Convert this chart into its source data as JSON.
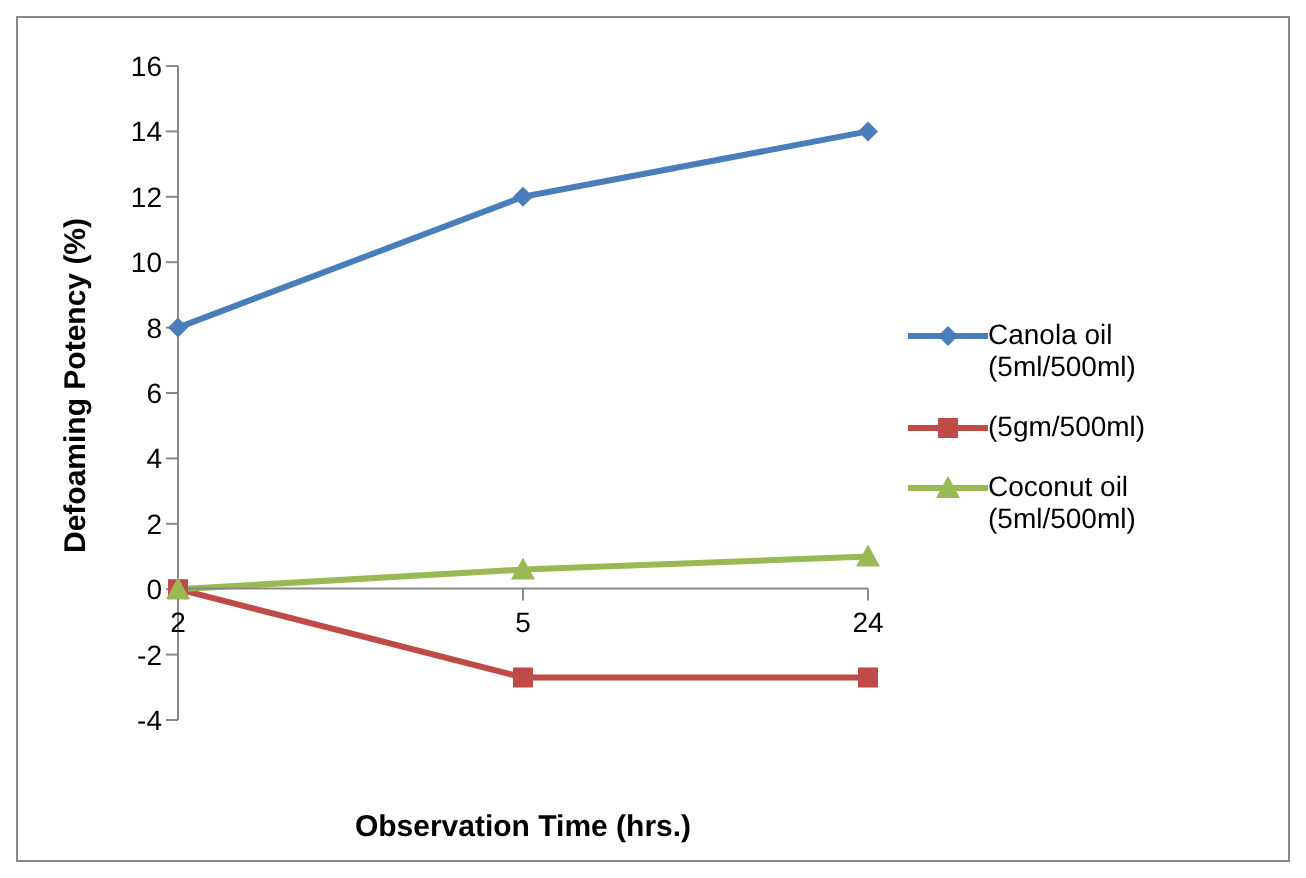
{
  "chart_data": {
    "type": "line",
    "xlabel": "Observation Time (hrs.)",
    "ylabel": "Defoaming Potency (%)",
    "categories": [
      "2",
      "5",
      "24"
    ],
    "series": [
      {
        "name": "Canola oil (5ml/500ml)",
        "color": "#4a7ebb",
        "values": [
          8,
          12,
          14
        ],
        "marker": "diamond"
      },
      {
        "name": "(5gm/500ml)",
        "color": "#be4b48",
        "values": [
          0,
          -2.7,
          -2.7
        ],
        "marker": "square"
      },
      {
        "name": "Coconut oil (5ml/500ml)",
        "color": "#98b954",
        "values": [
          0,
          0.6,
          1
        ],
        "marker": "triangle"
      }
    ],
    "ylim": [
      -4,
      16
    ],
    "yticks": [
      -4,
      -2,
      0,
      2,
      4,
      6,
      8,
      10,
      12,
      14,
      16
    ],
    "grid": false,
    "legend": "right"
  }
}
